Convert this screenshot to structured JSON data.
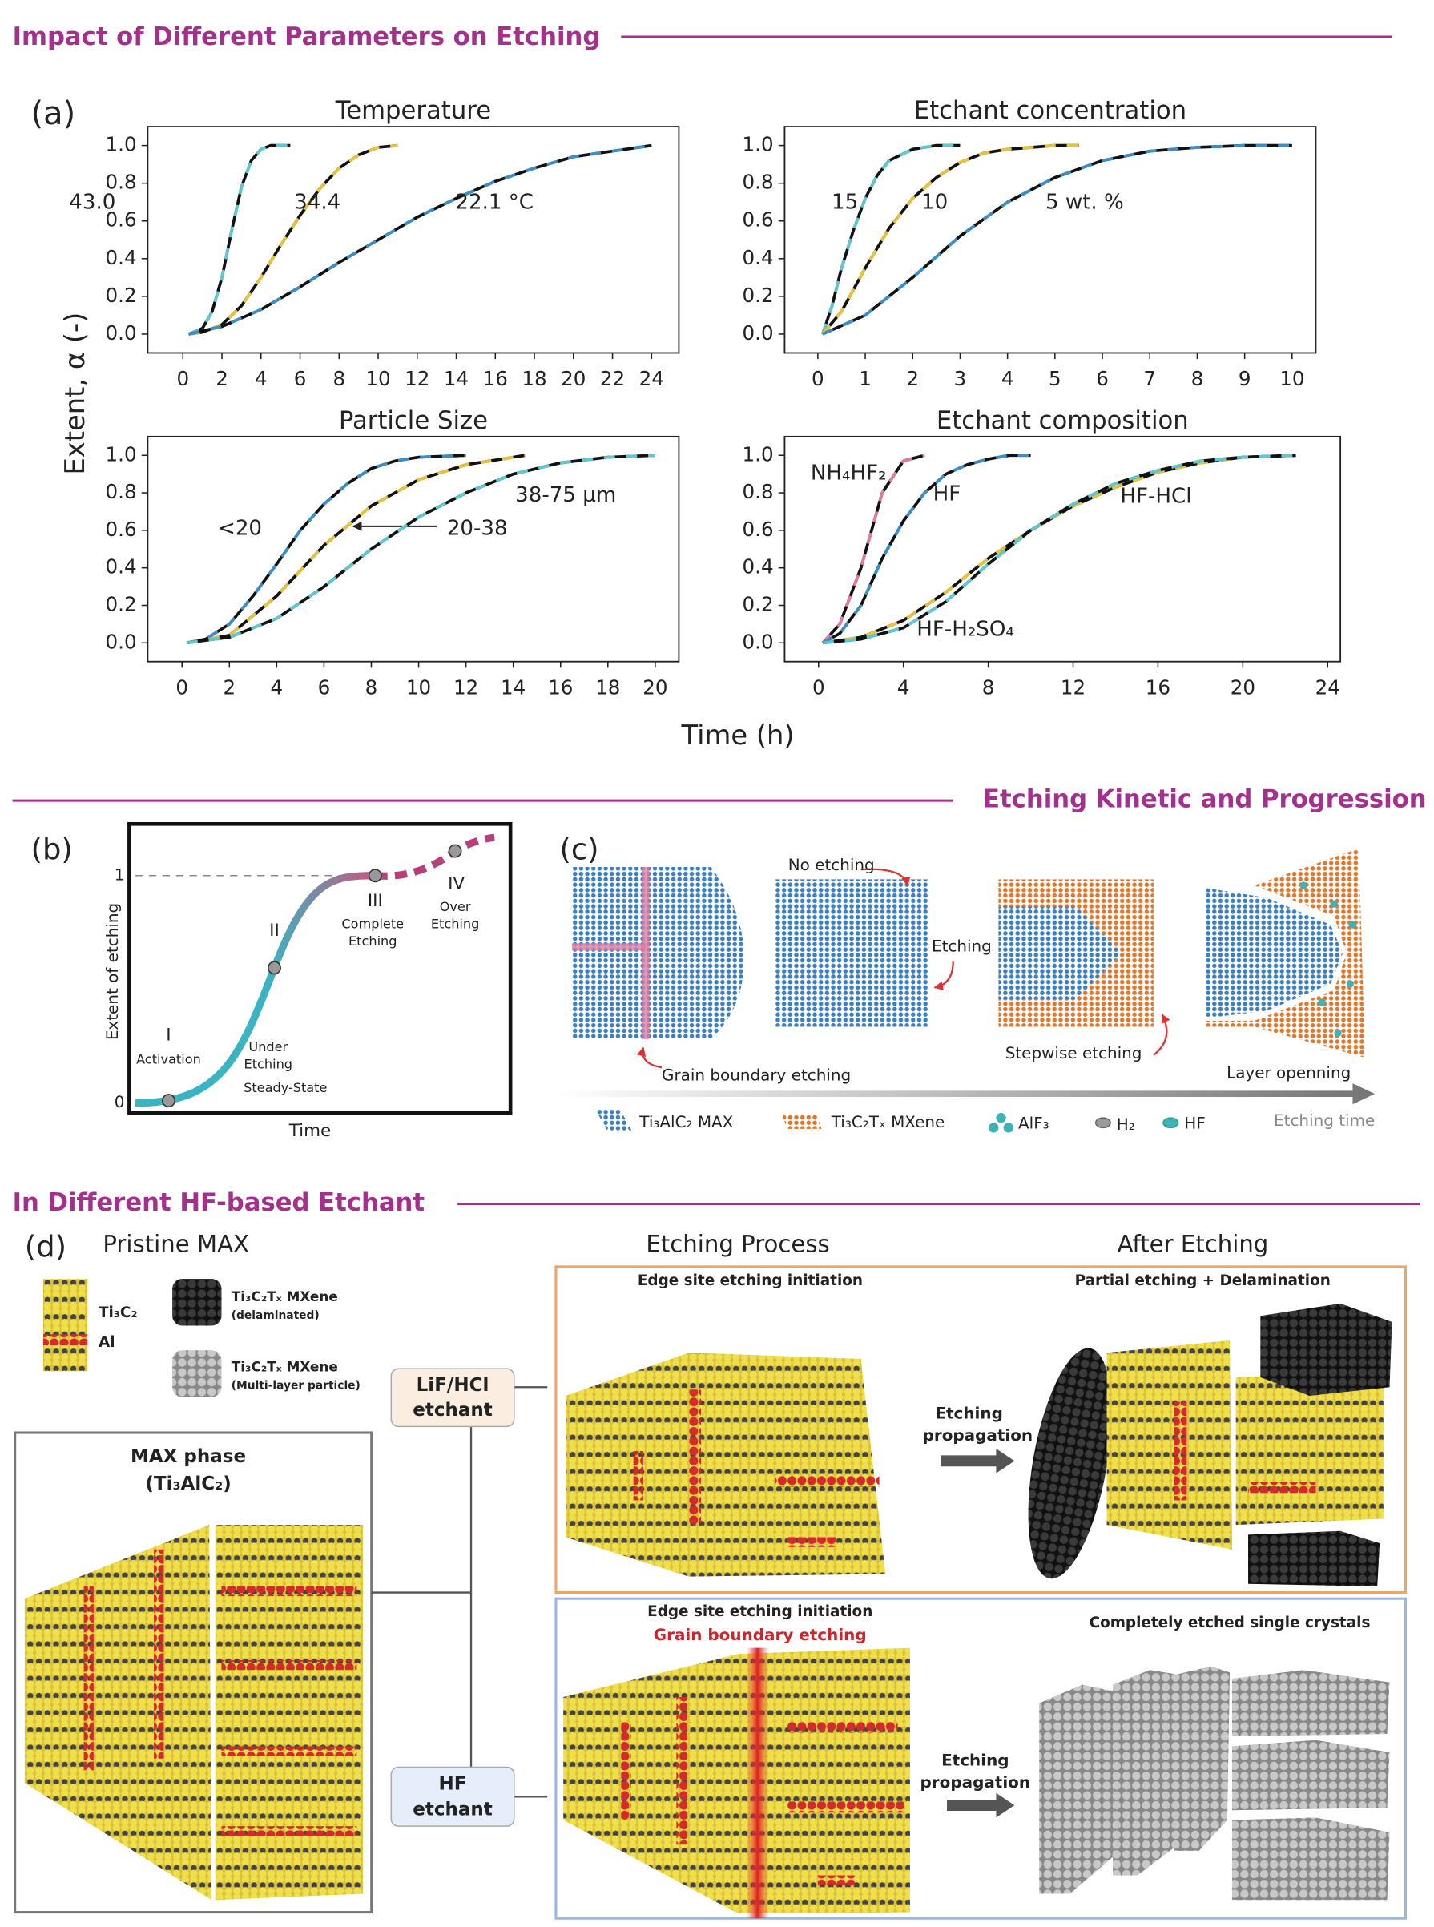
{
  "sections": [
    "Impact of Different Parameters on Etching",
    "Etching Kinetic and Progression",
    "In Different HF-based Etchant"
  ],
  "panel_a": {
    "label": "(a)",
    "ylabel": "Extent, α (-)",
    "xlabel": "Time (h)"
  },
  "chart_data": [
    {
      "type": "line",
      "title": "Temperature",
      "xlim": [
        -1.8,
        25.4
      ],
      "ylim": [
        -0.1,
        1.1
      ],
      "xticks": [
        0,
        2,
        4,
        6,
        8,
        10,
        12,
        14,
        16,
        18,
        20,
        22,
        24
      ],
      "yticks": [
        {
          "value": 0,
          "label": "0.0"
        },
        0.2,
        0.4,
        0.6,
        0.8,
        {
          "value": 1,
          "label": "1.0"
        }
      ],
      "series": [
        {
          "name": "43.0",
          "color": "#5cc8d2",
          "x": [
            0.3,
            1,
            1.5,
            2,
            2.5,
            3,
            3.5,
            4,
            4.5,
            5.5
          ],
          "values": [
            0,
            0.03,
            0.12,
            0.3,
            0.55,
            0.78,
            0.92,
            0.98,
            1.0,
            1.0
          ]
        },
        {
          "name": "34.4",
          "color": "#e8c23a",
          "x": [
            0.3,
            1,
            2,
            3,
            4,
            5,
            6,
            7,
            8,
            9,
            10,
            11
          ],
          "values": [
            0,
            0.01,
            0.05,
            0.15,
            0.3,
            0.47,
            0.63,
            0.77,
            0.88,
            0.95,
            0.99,
            1.0
          ]
        },
        {
          "name": "22.1 °C",
          "color": "#3a8fc9",
          "x": [
            0.3,
            2,
            4,
            6,
            8,
            10,
            12,
            14,
            16,
            18,
            20,
            22,
            24
          ],
          "values": [
            0,
            0.04,
            0.13,
            0.25,
            0.38,
            0.5,
            0.62,
            0.72,
            0.81,
            0.88,
            0.94,
            0.97,
            1.0
          ]
        }
      ]
    },
    {
      "type": "line",
      "title": "Etchant concentration",
      "xlim": [
        -0.7,
        10.5
      ],
      "ylim": [
        -0.1,
        1.1
      ],
      "xticks": [
        0,
        1,
        2,
        3,
        4,
        5,
        6,
        7,
        8,
        9,
        10
      ],
      "yticks": [
        {
          "value": 0,
          "label": "0.0"
        },
        0.2,
        0.4,
        0.6,
        0.8,
        {
          "value": 1,
          "label": "1.0"
        }
      ],
      "series": [
        {
          "name": "15",
          "color": "#5cc8d2",
          "x": [
            0.1,
            0.3,
            0.5,
            0.75,
            1,
            1.25,
            1.5,
            2,
            2.5,
            3
          ],
          "values": [
            0,
            0.15,
            0.35,
            0.55,
            0.72,
            0.84,
            0.92,
            0.98,
            1.0,
            1.0
          ]
        },
        {
          "name": "10",
          "color": "#e8c23a",
          "x": [
            0.1,
            0.5,
            1,
            1.5,
            2,
            2.5,
            3,
            3.5,
            4,
            5,
            5.5
          ],
          "values": [
            0,
            0.12,
            0.35,
            0.56,
            0.72,
            0.83,
            0.91,
            0.96,
            0.98,
            1.0,
            1.0
          ]
        },
        {
          "name": "5 wt. %",
          "color": "#3a8fc9",
          "x": [
            0.1,
            1,
            2,
            3,
            4,
            5,
            6,
            7,
            8,
            9,
            10
          ],
          "values": [
            0,
            0.1,
            0.3,
            0.52,
            0.7,
            0.83,
            0.92,
            0.97,
            0.99,
            1.0,
            1.0
          ]
        }
      ]
    },
    {
      "type": "line",
      "title": "Particle Size",
      "xlim": [
        -1.45,
        21
      ],
      "ylim": [
        -0.1,
        1.1
      ],
      "xticks": [
        0,
        2,
        4,
        6,
        8,
        10,
        12,
        14,
        16,
        18,
        20
      ],
      "yticks": [
        {
          "value": 0,
          "label": "0.0"
        },
        0.2,
        0.4,
        0.6,
        0.8,
        {
          "value": 1,
          "label": "1.0"
        }
      ],
      "series": [
        {
          "name": "<20",
          "color": "#3a8fc9",
          "x": [
            0.2,
            1,
            2,
            3,
            4,
            5,
            6,
            7,
            8,
            9,
            10,
            12
          ],
          "values": [
            0,
            0.02,
            0.1,
            0.25,
            0.42,
            0.6,
            0.74,
            0.85,
            0.93,
            0.97,
            0.99,
            1.0
          ]
        },
        {
          "name": "20-38",
          "color": "#e8c23a",
          "x": [
            0.2,
            2,
            4,
            6,
            8,
            10,
            12,
            14,
            14.5
          ],
          "values": [
            0,
            0.04,
            0.25,
            0.52,
            0.73,
            0.87,
            0.95,
            0.99,
            1.0
          ]
        },
        {
          "name": "38-75 µm",
          "color": "#5cc8d2",
          "x": [
            0.2,
            2,
            4,
            6,
            8,
            10,
            12,
            14,
            16,
            18,
            20
          ],
          "values": [
            0,
            0.03,
            0.13,
            0.3,
            0.5,
            0.67,
            0.8,
            0.9,
            0.96,
            0.99,
            1.0
          ]
        }
      ]
    },
    {
      "type": "line",
      "title": "Etchant composition",
      "xlim": [
        -1.6,
        24.6
      ],
      "ylim": [
        -0.1,
        1.1
      ],
      "xticks": [
        0,
        4,
        8,
        12,
        16,
        20,
        24
      ],
      "yticks": [
        {
          "value": 0,
          "label": "0.0"
        },
        0.2,
        0.4,
        0.6,
        0.8,
        {
          "value": 1,
          "label": "1.0"
        }
      ],
      "series": [
        {
          "name": "NH₄HF₂",
          "color": "#e07aa0",
          "x": [
            0.2,
            1,
            2,
            3,
            4,
            5
          ],
          "values": [
            0,
            0.1,
            0.4,
            0.8,
            0.97,
            1.0
          ]
        },
        {
          "name": "HF",
          "color": "#3a8fc9",
          "x": [
            0.2,
            1,
            2,
            3,
            4,
            5,
            6,
            7,
            8,
            9,
            10
          ],
          "values": [
            0,
            0.05,
            0.2,
            0.45,
            0.65,
            0.8,
            0.9,
            0.95,
            0.98,
            1.0,
            1.0
          ]
        },
        {
          "name": "HF-HCl",
          "color": "#e8c23a",
          "x": [
            0.2,
            2,
            4,
            6,
            8,
            10,
            12,
            14,
            16,
            18,
            20,
            22.5
          ],
          "values": [
            0,
            0.03,
            0.12,
            0.27,
            0.45,
            0.6,
            0.73,
            0.83,
            0.91,
            0.96,
            0.99,
            1.0
          ]
        },
        {
          "name": "HF-H₂SO₄",
          "color": "#5cc8d2",
          "x": [
            0.2,
            2,
            4,
            6,
            8,
            10,
            12,
            14,
            16,
            18,
            20,
            22.5
          ],
          "values": [
            0,
            0.02,
            0.08,
            0.22,
            0.42,
            0.6,
            0.74,
            0.85,
            0.92,
            0.97,
            0.99,
            1.0
          ]
        }
      ]
    }
  ],
  "panel_b": {
    "label": "(b)",
    "ylabel": "Extent of etching",
    "xlabel": "Time",
    "yticks": [
      "0",
      "1"
    ],
    "stages": [
      {
        "numeral": "I",
        "lines": [
          "Activation"
        ]
      },
      {
        "numeral": "II",
        "lines": [
          "Under",
          "Etching",
          "Steady-State"
        ]
      },
      {
        "numeral": "III",
        "lines": [
          "Complete",
          "Etching"
        ]
      },
      {
        "numeral": "IV",
        "lines": [
          "Over",
          "Etching"
        ]
      }
    ]
  },
  "panel_c": {
    "label": "(c)",
    "annotations": [
      "No etching",
      "Etching",
      "Stepwise etching",
      "Grain boundary etching",
      "Layer openning"
    ],
    "axis_label": "Etching time",
    "legend": [
      "Ti₃AlC₂ MAX",
      "Ti₃C₂Tₓ MXene",
      "AlF₃",
      "H₂",
      "HF"
    ]
  },
  "panel_d": {
    "label": "(d)",
    "headers": [
      "Pristine MAX",
      "Etching Process",
      "After Etching"
    ],
    "legend": [
      {
        "lines": [
          "Ti₃C₂"
        ]
      },
      {
        "lines": [
          "Al"
        ]
      },
      {
        "lines": [
          "Ti₃C₂Tₓ MXene",
          "(delaminated)"
        ]
      },
      {
        "lines": [
          "Ti₃C₂Tₓ MXene",
          "(Multi-layer particle)"
        ]
      }
    ],
    "max_phase": [
      "MAX phase",
      "(Ti₃AlC₂)"
    ],
    "etchants": [
      [
        "LiF/HCl",
        "etchant"
      ],
      [
        "HF",
        "etchant"
      ]
    ],
    "lif_panel": {
      "left": "Edge site etching initiation",
      "right": "Partial etching + Delamination",
      "arrow": [
        "Etching",
        "propagation"
      ]
    },
    "hf_panel": {
      "left": "Edge site etching initiation",
      "left_sub": "Grain boundary etching",
      "right": "Completely etched single crystals",
      "arrow": [
        "Etching",
        "propagation"
      ]
    }
  }
}
